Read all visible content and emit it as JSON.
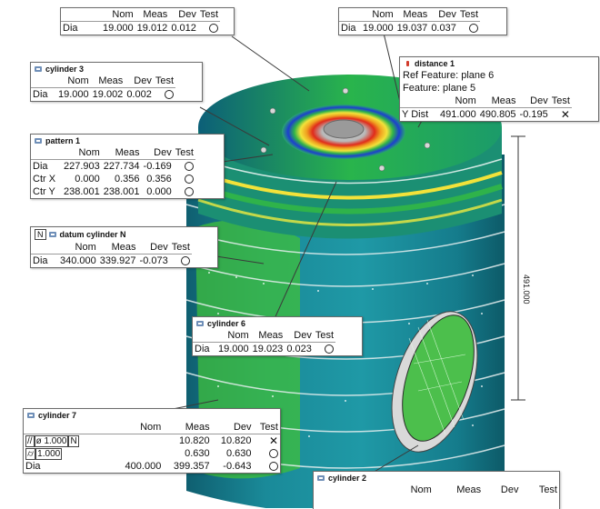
{
  "colors": {
    "accent": "#6f8fb8",
    "fail": "#d23c2c",
    "model_teal": "#157c8c",
    "model_green": "#2fb34a",
    "model_red": "#e02b1b",
    "model_blue": "#1c3fcf"
  },
  "top_left": {
    "headers": [
      "Nom",
      "Meas",
      "Dev",
      "Test"
    ],
    "row": {
      "label": "Dia",
      "nom": "19.000",
      "meas": "19.012",
      "dev": "0.012",
      "icon": "circle-icon"
    }
  },
  "top_right": {
    "headers": [
      "Nom",
      "Meas",
      "Dev",
      "Test"
    ],
    "row": {
      "label": "Dia",
      "nom": "19.000",
      "meas": "19.037",
      "dev": "0.037",
      "icon": "circle-icon"
    }
  },
  "cylinder3": {
    "title": "cylinder 3",
    "headers": [
      "Nom",
      "Meas",
      "Dev",
      "Test"
    ],
    "row": {
      "label": "Dia",
      "nom": "19.000",
      "meas": "19.002",
      "dev": "0.002",
      "icon": "circle-icon"
    }
  },
  "distance1": {
    "title": "distance 1",
    "ref_feature": "Ref Feature: plane 6",
    "feature": "Feature: plane 5",
    "headers": [
      "Nom",
      "Meas",
      "Dev",
      "Test"
    ],
    "row": {
      "label": "Y Dist",
      "nom": "491.000",
      "meas": "490.805",
      "dev": "-0.195",
      "icon": "x-icon"
    }
  },
  "pattern1": {
    "title": "pattern 1",
    "headers": [
      "Nom",
      "Meas",
      "Dev",
      "Test"
    ],
    "rows": [
      {
        "label": "Dia",
        "nom": "227.903",
        "meas": "227.734",
        "dev": "-0.169"
      },
      {
        "label": "Ctr X",
        "nom": "0.000",
        "meas": "0.356",
        "dev": "0.356"
      },
      {
        "label": "Ctr Y",
        "nom": "238.001",
        "meas": "238.001",
        "dev": "0.000"
      }
    ]
  },
  "datum_cylinder": {
    "tag": "N",
    "title": "datum cylinder N",
    "headers": [
      "Nom",
      "Meas",
      "Dev",
      "Test"
    ],
    "row": {
      "label": "Dia",
      "nom": "340.000",
      "meas": "339.927",
      "dev": "-0.073"
    }
  },
  "cylinder6": {
    "title": "cylinder 6",
    "headers": [
      "Nom",
      "Meas",
      "Dev",
      "Test"
    ],
    "row": {
      "label": "Dia",
      "nom": "19.000",
      "meas": "19.023",
      "dev": "0.023"
    }
  },
  "cylinder7": {
    "title": "cylinder 7",
    "headers": [
      "Nom",
      "Meas",
      "Dev",
      "Test"
    ],
    "rows": [
      {
        "sym": "//",
        "sym2": "ø",
        "tol": "1.000",
        "datum": "N",
        "nom": "",
        "meas": "10.820",
        "dev": "10.820",
        "icon": "x-icon"
      },
      {
        "sym": "⌭",
        "tol": "1.000",
        "nom": "",
        "meas": "0.630",
        "dev": "0.630",
        "icon": "circle-icon"
      },
      {
        "label": "Dia",
        "nom": "400.000",
        "meas": "399.357",
        "dev": "-0.643",
        "icon": "circle-icon"
      }
    ]
  },
  "cylinder2": {
    "title": "cylinder 2",
    "headers": [
      "Nom",
      "Meas",
      "Dev",
      "Test"
    ]
  },
  "dimension_label": "491.000"
}
